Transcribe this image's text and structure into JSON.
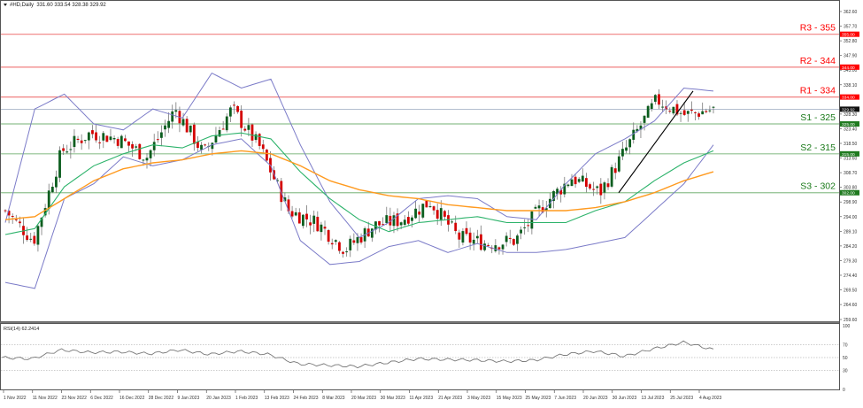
{
  "header": {
    "symbol": "#HD,Daily",
    "ohlc": "331.60 333.54 328.38 329.92"
  },
  "rsi_panel": {
    "label": "RSI(14) 62.2414",
    "levels": [
      70,
      50,
      30
    ],
    "axis": [
      "100",
      "70",
      "50",
      "30",
      "0"
    ]
  },
  "levels": [
    {
      "name": "R3 - 355",
      "value": 355,
      "tag": "355.00",
      "color": "#ff0000",
      "line": "#f08080"
    },
    {
      "name": "R2 - 344",
      "value": 344,
      "tag": "344.00",
      "color": "#ff0000",
      "line": "#f08080"
    },
    {
      "name": "R1 - 334",
      "value": 334,
      "tag": "334.00",
      "color": "#ff0000",
      "line": "#f08080"
    },
    {
      "name": "S1 - 325",
      "value": 325,
      "tag": "325.00",
      "color": "#1a7a1a",
      "line": "#8fc08f"
    },
    {
      "name": "S2 - 315",
      "value": 315,
      "tag": "315.00",
      "color": "#1a7a1a",
      "line": "#8fc08f"
    },
    {
      "name": "S3 - 302",
      "value": 302,
      "tag": "302.00",
      "color": "#1a7a1a",
      "line": "#8fc08f"
    }
  ],
  "current_price": {
    "value": 329.92,
    "tag": "329.92"
  },
  "price_axis": [
    "362.60",
    "357.70",
    "352.80",
    "347.90",
    "343.00",
    "338.10",
    "328.30",
    "323.40",
    "318.50",
    "313.60",
    "308.70",
    "303.80",
    "298.90",
    "294.00",
    "289.10",
    "284.20",
    "279.30",
    "274.40",
    "269.50",
    "264.60",
    "259.60"
  ],
  "date_axis": [
    "1 Nov 2022",
    "11 Nov 2022",
    "23 Nov 2022",
    "6 Dec 2022",
    "16 Dec 2022",
    "28 Dec 2022",
    "9 Jan 2023",
    "20 Jan 2023",
    "1 Feb 2023",
    "13 Feb 2023",
    "24 Feb 2023",
    "8 Mar 2023",
    "20 Mar 2023",
    "30 Mar 2023",
    "11 Apr 2023",
    "21 Apr 2023",
    "3 May 2023",
    "15 May 2023",
    "25 May 2023",
    "7 Jun 2023",
    "20 Jun 2023",
    "30 Jun 2023",
    "13 Jul 2023",
    "25 Jul 2023",
    "4 Aug 2023"
  ],
  "colors": {
    "bull": "#0b5d1e",
    "bear": "#d40000",
    "wick": "#777777",
    "bollinger": "#7b7bc8",
    "ma_fast": "#2db36b",
    "ma_slow": "#ff9a1f",
    "rsi": "#777777"
  },
  "chart_data": {
    "type": "candlestick",
    "title": "#HD,Daily 331.60 333.54 328.38 329.92",
    "xlabel": "",
    "ylabel": "",
    "ylim": [
      259.6,
      362.6
    ],
    "grid": false,
    "x_ticks": [
      "1 Nov 2022",
      "11 Nov 2022",
      "23 Nov 2022",
      "6 Dec 2022",
      "16 Dec 2022",
      "28 Dec 2022",
      "9 Jan 2023",
      "20 Jan 2023",
      "1 Feb 2023",
      "13 Feb 2023",
      "24 Feb 2023",
      "8 Mar 2023",
      "20 Mar 2023",
      "30 Mar 2023",
      "11 Apr 2023",
      "21 Apr 2023",
      "3 May 2023",
      "15 May 2023",
      "25 May 2023",
      "7 Jun 2023",
      "20 Jun 2023",
      "30 Jun 2023",
      "13 Jul 2023",
      "25 Jul 2023",
      "4 Aug 2023"
    ],
    "horizontal_levels": [
      {
        "label": "R3 - 355",
        "value": 355
      },
      {
        "label": "R2 - 344",
        "value": 344
      },
      {
        "label": "R1 - 334",
        "value": 334
      },
      {
        "label": "S1 - 325",
        "value": 325
      },
      {
        "label": "S2 - 315",
        "value": 315
      },
      {
        "label": "S3 - 302",
        "value": 302
      }
    ],
    "trendline": {
      "from": {
        "date": "30 Jun 2023",
        "price": 302.0
      },
      "to": {
        "date": "28 Jul 2023",
        "price": 336.0
      }
    },
    "series": [
      {
        "name": "Close (approx.)",
        "x": [
          "1 Nov 2022",
          "11 Nov 2022",
          "23 Nov 2022",
          "6 Dec 2022",
          "16 Dec 2022",
          "28 Dec 2022",
          "9 Jan 2023",
          "20 Jan 2023",
          "1 Feb 2023",
          "13 Feb 2023",
          "24 Feb 2023",
          "8 Mar 2023",
          "20 Mar 2023",
          "30 Mar 2023",
          "11 Apr 2023",
          "21 Apr 2023",
          "3 May 2023",
          "15 May 2023",
          "25 May 2023",
          "7 Jun 2023",
          "20 Jun 2023",
          "30 Jun 2023",
          "13 Jul 2023",
          "25 Jul 2023",
          "4 Aug 2023",
          "10 Aug 2023"
        ],
        "values": [
          296,
          286,
          316,
          322,
          320,
          314,
          330,
          315,
          330,
          317,
          296,
          292,
          283,
          291,
          293,
          299,
          287,
          285,
          286,
          298,
          307,
          302,
          318,
          333,
          328,
          329.92
        ]
      },
      {
        "name": "Bollinger Upper (approx.)",
        "values": [
          292,
          330,
          335,
          325,
          323,
          330,
          327,
          342,
          337,
          340,
          318,
          299,
          287,
          292,
          300,
          301,
          300,
          294,
          293,
          305,
          315,
          320,
          326,
          337,
          336
        ]
      },
      {
        "name": "Bollinger Lower (approx.)",
        "values": [
          272,
          270,
          300,
          305,
          314,
          311,
          313,
          318,
          320,
          311,
          286,
          278,
          279,
          284,
          286,
          282,
          285,
          282,
          282,
          283,
          285,
          287,
          296,
          305,
          318
        ]
      },
      {
        "name": "MA fast (green, approx.)",
        "values": [
          288,
          290,
          304,
          311,
          315,
          318,
          317,
          321,
          322,
          320,
          309,
          300,
          293,
          289,
          292,
          293,
          294,
          292,
          292,
          292,
          296,
          299,
          306,
          312,
          316
        ]
      },
      {
        "name": "MA slow (orange, approx.)",
        "values": [
          293,
          294,
          300,
          306,
          310,
          312,
          313,
          315,
          316,
          315,
          311,
          306,
          303,
          301,
          300,
          298,
          297,
          296,
          296,
          296,
          297,
          299,
          302,
          306,
          309
        ]
      },
      {
        "name": "RSI(14) (approx.)",
        "values": [
          50,
          48,
          62,
          58,
          59,
          56,
          62,
          55,
          60,
          55,
          40,
          38,
          36,
          42,
          48,
          47,
          46,
          44,
          46,
          55,
          60,
          52,
          64,
          74,
          62.24
        ]
      }
    ]
  }
}
